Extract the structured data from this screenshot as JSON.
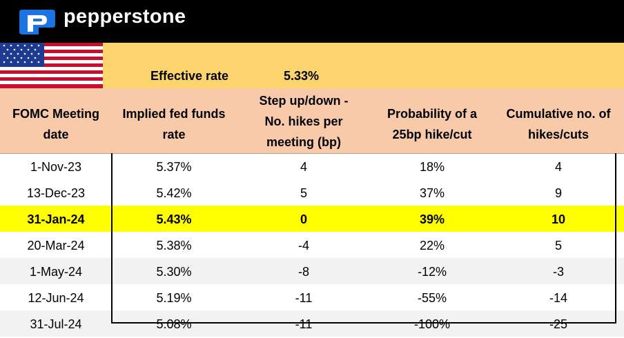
{
  "brand": {
    "name": "pepperstone",
    "logo_icon": "pepperstone-p-logo-icon",
    "color_blue": "#1c74e0"
  },
  "flag": {
    "icon": "us-flag-icon"
  },
  "effective_rate": {
    "label": "Effective rate",
    "value": "5.33%"
  },
  "table": {
    "headers": [
      "FOMC Meeting\ndate",
      "Implied fed funds\nrate",
      "Step up/down -\nNo. hikes per\nmeeting (bp)",
      "Probability of a\n25bp hike/cut",
      "Cumulative no. of\nhikes/cuts"
    ],
    "rows": [
      {
        "date": "1-Nov-23",
        "implied": "5.37%",
        "step": "4",
        "prob": "18%",
        "cum": "4"
      },
      {
        "date": "13-Dec-23",
        "implied": "5.42%",
        "step": "5",
        "prob": "37%",
        "cum": "9"
      },
      {
        "date": "31-Jan-24",
        "implied": "5.43%",
        "step": "0",
        "prob": "39%",
        "cum": "10"
      },
      {
        "date": "20-Mar-24",
        "implied": "5.38%",
        "step": "-4",
        "prob": "22%",
        "cum": "5"
      },
      {
        "date": "1-May-24",
        "implied": "5.30%",
        "step": "-8",
        "prob": "-12%",
        "cum": "-3"
      },
      {
        "date": "12-Jun-24",
        "implied": "5.19%",
        "step": "-11",
        "prob": "-55%",
        "cum": "-14"
      },
      {
        "date": "31-Jul-24",
        "implied": "5.08%",
        "step": "-11",
        "prob": "-100%",
        "cum": "-25"
      }
    ],
    "highlighted_row": 2,
    "colors": {
      "header_bg": "#f8caa9",
      "rate_bar_bg": "#fdd46d",
      "highlight": "#ffff00",
      "shade": "#f2f2f2"
    }
  }
}
